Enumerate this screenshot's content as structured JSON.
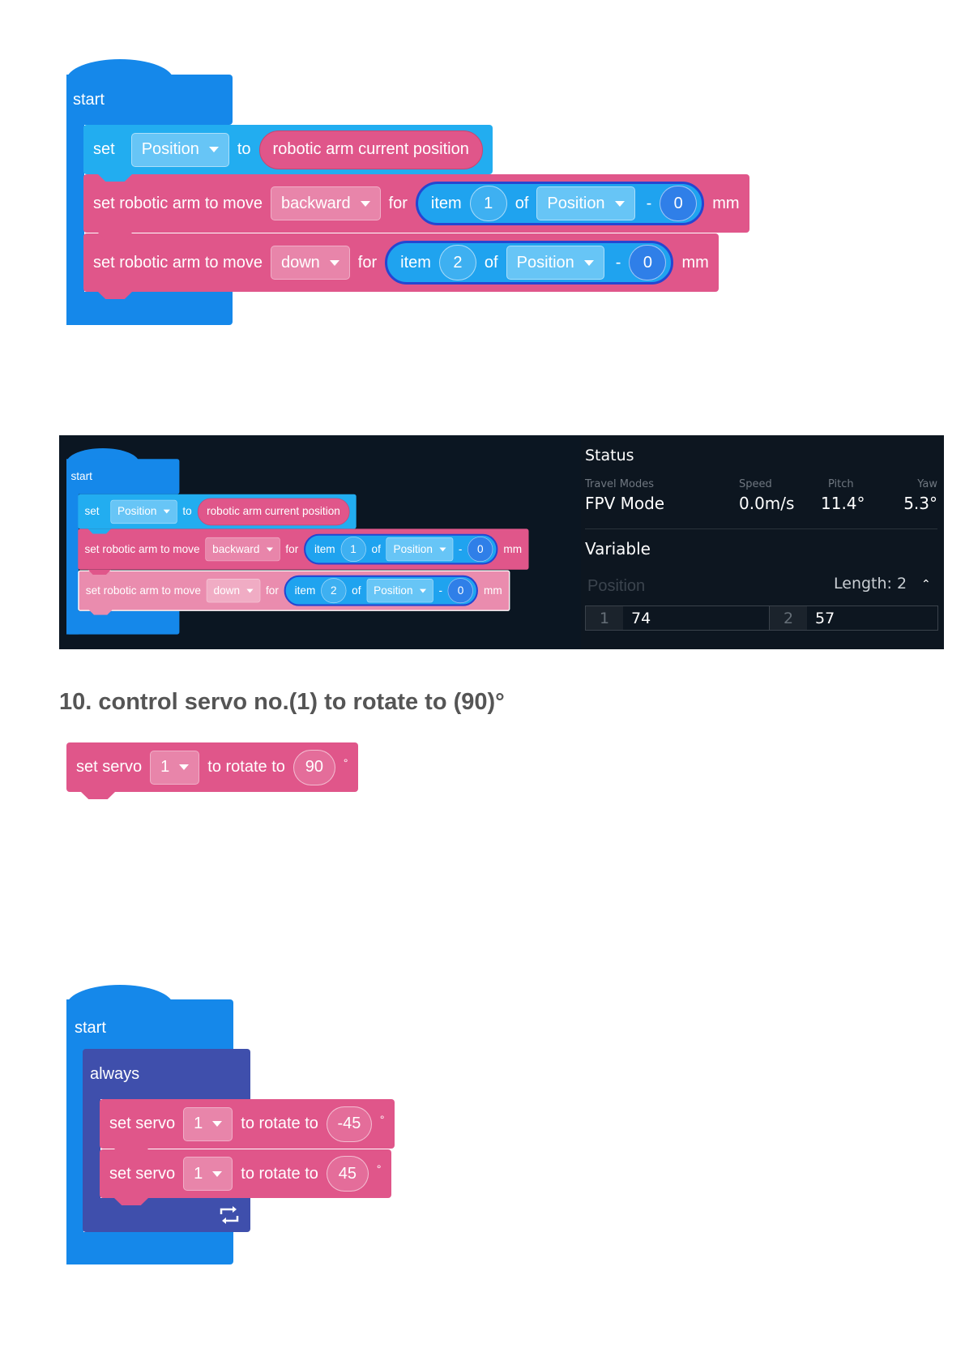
{
  "group1": {
    "start": "start",
    "set_block": {
      "set": "set",
      "var": "Position",
      "to": "to",
      "reporter": "robotic arm current position"
    },
    "moves": [
      {
        "label": "set robotic arm to move",
        "direction": "backward",
        "for": "for",
        "item": "item",
        "index": "1",
        "of": "of",
        "list": "Position",
        "minus": "-",
        "offset": "0",
        "unit": "mm"
      },
      {
        "label": "set robotic arm to move",
        "direction": "down",
        "for": "for",
        "item": "item",
        "index": "2",
        "of": "of",
        "list": "Position",
        "minus": "-",
        "offset": "0",
        "unit": "mm"
      }
    ]
  },
  "panel": {
    "code": {
      "start": "start",
      "set_block": {
        "set": "set",
        "var": "Position",
        "to": "to",
        "reporter": "robotic arm current position"
      },
      "moves": [
        {
          "label": "set robotic arm to move",
          "direction": "backward",
          "for": "for",
          "item": "item",
          "index": "1",
          "of": "of",
          "list": "Position",
          "minus": "-",
          "offset": "0",
          "unit": "mm"
        },
        {
          "label": "set robotic arm to move",
          "direction": "down",
          "for": "for",
          "item": "item",
          "index": "2",
          "of": "of",
          "list": "Position",
          "minus": "-",
          "offset": "0",
          "unit": "mm"
        }
      ]
    },
    "status": {
      "title": "Status",
      "fields": [
        {
          "label": "Travel Modes",
          "value": "FPV Mode"
        },
        {
          "label": "Speed",
          "value": "0.0m/s"
        },
        {
          "label": "Pitch",
          "value": "11.4°"
        },
        {
          "label": "Yaw",
          "value": "5.3°"
        }
      ]
    },
    "variable": {
      "title": "Variable",
      "name": "Position",
      "length_label": "Length:",
      "length": "2",
      "items": [
        {
          "index": "1",
          "value": "74"
        },
        {
          "index": "2",
          "value": "57"
        }
      ]
    }
  },
  "section_title": "10. control servo no.(1) to rotate to (90)°",
  "servo_single": {
    "label": "set servo",
    "servo": "1",
    "rotate": "to rotate to",
    "angle": "90",
    "unit": "°"
  },
  "group3": {
    "start": "start",
    "always": "always",
    "servos": [
      {
        "label": "set servo",
        "servo": "1",
        "rotate": "to rotate to",
        "angle": "-45",
        "unit": "°"
      },
      {
        "label": "set servo",
        "servo": "1",
        "rotate": "to rotate to",
        "angle": "45",
        "unit": "°"
      }
    ],
    "loop_icon": "repeat-icon"
  },
  "colors": {
    "start": "#1588ea",
    "variable": "#22adf0",
    "robotic_arm": "#e0568a",
    "control": "#3f4fac",
    "panel_bg": "#0b1622"
  }
}
